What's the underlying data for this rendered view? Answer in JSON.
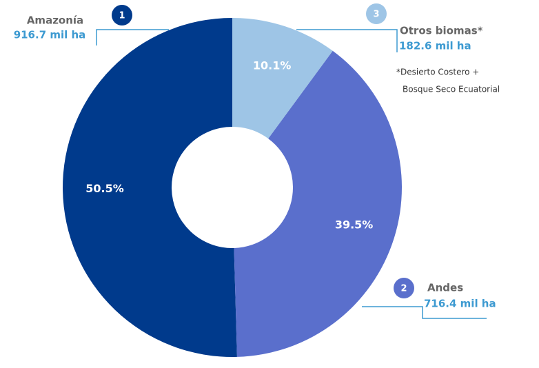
{
  "chart_data": {
    "type": "donut",
    "categories": [
      "Amazonía",
      "Andes",
      "Otros biomas*"
    ],
    "values": [
      50.5,
      39.5,
      10.1
    ],
    "value_labels": [
      "50.5%",
      "39.5%",
      "10.1%"
    ],
    "amounts": [
      "916.7 mil ha",
      "716.4 mil ha",
      "182.6 mil ha"
    ],
    "ranks": [
      "1",
      "2",
      "3"
    ],
    "colors": [
      "#003a8c",
      "#5a6fcc",
      "#9ec5e6"
    ],
    "footnote": [
      "*Desierto Costero +",
      "Bosque Seco Ecuatorial"
    ]
  }
}
